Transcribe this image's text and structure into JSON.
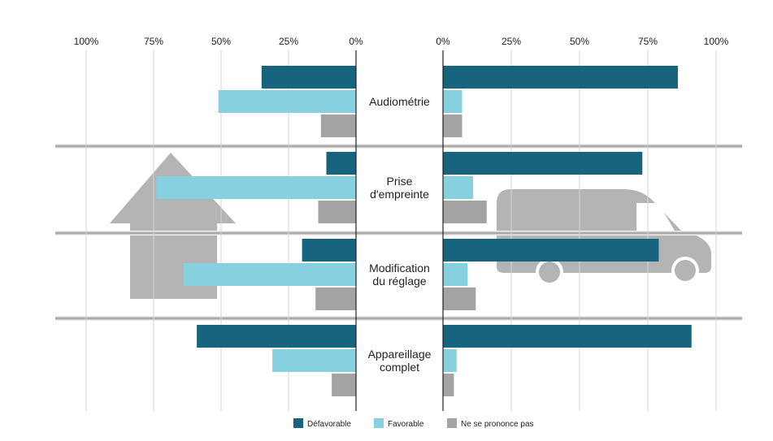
{
  "colors": {
    "defavorable": "#17647e",
    "favorable": "#86d0df",
    "ne_se_prononce_pas": "#a3a3a3",
    "decor": "#b4b4b4"
  },
  "decor": {
    "left_icon": "arrow-up-icon",
    "right_icon": "van-icon"
  },
  "chart_data": {
    "type": "bar",
    "orientation": "horizontal-butterfly",
    "categories": [
      [
        "Audiométrie"
      ],
      [
        "Prise",
        "d'empreinte"
      ],
      [
        "Modification",
        "du réglage"
      ],
      [
        "Appareillage",
        "complet"
      ]
    ],
    "left_ticks": [
      "100%",
      "75%",
      "50%",
      "25%",
      "0%"
    ],
    "right_ticks": [
      "0%",
      "25%",
      "50%",
      "75%",
      "100%"
    ],
    "xlim": [
      0,
      100
    ],
    "legend_position": "bottom-center",
    "left_panel": {
      "series": [
        {
          "name": "Défavorable",
          "values": [
            35,
            11,
            20,
            59
          ]
        },
        {
          "name": "Favorable",
          "values": [
            51,
            74,
            64,
            31
          ]
        },
        {
          "name": "Ne se prononce pas",
          "values": [
            13,
            14,
            15,
            9
          ]
        }
      ]
    },
    "right_panel": {
      "series": [
        {
          "name": "Défavorable",
          "values": [
            86,
            73,
            79,
            91
          ]
        },
        {
          "name": "Favorable",
          "values": [
            7,
            11,
            9,
            5
          ]
        },
        {
          "name": "Ne se prononce pas",
          "values": [
            7,
            16,
            12,
            4
          ]
        }
      ]
    },
    "legend": [
      "Défavorable",
      "Favorable",
      "Ne se prononce pas"
    ]
  }
}
